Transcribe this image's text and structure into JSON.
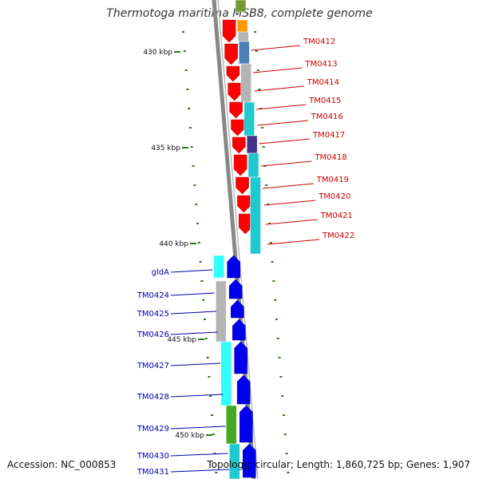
{
  "title": "Thermotoga maritima MSB8, complete genome",
  "accession_text": "Accession: NC_000853",
  "topology_text": "Topology: circular; Length: 1,860,725 bp; Genes: 1,907",
  "scale_ticks": [
    "430 kbp",
    "435 kbp",
    "440 kbp",
    "445 kbp",
    "450 kbp"
  ],
  "right_genes": [
    "TM0412",
    "TM0413",
    "TM0414",
    "TM0415",
    "TM0416",
    "TM0417",
    "TM0418",
    "TM0419",
    "TM0420",
    "TM0421",
    "TM0422"
  ],
  "left_genes": [
    "gldA",
    "TM0424",
    "TM0425",
    "TM0426",
    "TM0427",
    "TM0428",
    "TM0429",
    "TM0430",
    "TM0431"
  ],
  "colors": {
    "right_label": "#cc0000",
    "left_label": "#0000aa",
    "forward_arrow": "#ff0000",
    "reverse_arrow": "#0000ee",
    "backbone": "#888888",
    "cat_cyan": "#20c8d0",
    "cat_bright_cyan": "#30ffff",
    "cat_gray": "#b4b4b4",
    "cat_orange": "#ff9900",
    "cat_olive": "#779933",
    "cat_steel": "#4b7fb8",
    "cat_purple": "#443388",
    "cat_green": "#44aa22",
    "tick": "#337722"
  }
}
